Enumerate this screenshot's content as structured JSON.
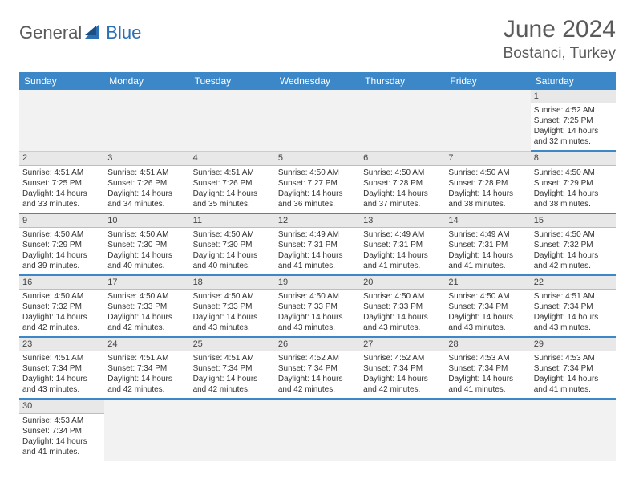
{
  "logo": {
    "general": "General",
    "blue": "Blue"
  },
  "title": "June 2024",
  "location": "Bostanci, Turkey",
  "colors": {
    "header_bg": "#3b87c8",
    "header_fg": "#ffffff",
    "accent": "#2b6fb5",
    "text": "#333333",
    "muted": "#5a5a5a",
    "cell_num_bg": "#e8e8e8",
    "blank_bg": "#f2f2f2"
  },
  "day_names": [
    "Sunday",
    "Monday",
    "Tuesday",
    "Wednesday",
    "Thursday",
    "Friday",
    "Saturday"
  ],
  "cells": [
    {
      "blank": true
    },
    {
      "blank": true
    },
    {
      "blank": true
    },
    {
      "blank": true
    },
    {
      "blank": true
    },
    {
      "blank": true
    },
    {
      "date": "1",
      "sunrise": "Sunrise: 4:52 AM",
      "sunset": "Sunset: 7:25 PM",
      "daylight1": "Daylight: 14 hours",
      "daylight2": "and 32 minutes."
    },
    {
      "date": "2",
      "sunrise": "Sunrise: 4:51 AM",
      "sunset": "Sunset: 7:25 PM",
      "daylight1": "Daylight: 14 hours",
      "daylight2": "and 33 minutes."
    },
    {
      "date": "3",
      "sunrise": "Sunrise: 4:51 AM",
      "sunset": "Sunset: 7:26 PM",
      "daylight1": "Daylight: 14 hours",
      "daylight2": "and 34 minutes."
    },
    {
      "date": "4",
      "sunrise": "Sunrise: 4:51 AM",
      "sunset": "Sunset: 7:26 PM",
      "daylight1": "Daylight: 14 hours",
      "daylight2": "and 35 minutes."
    },
    {
      "date": "5",
      "sunrise": "Sunrise: 4:50 AM",
      "sunset": "Sunset: 7:27 PM",
      "daylight1": "Daylight: 14 hours",
      "daylight2": "and 36 minutes."
    },
    {
      "date": "6",
      "sunrise": "Sunrise: 4:50 AM",
      "sunset": "Sunset: 7:28 PM",
      "daylight1": "Daylight: 14 hours",
      "daylight2": "and 37 minutes."
    },
    {
      "date": "7",
      "sunrise": "Sunrise: 4:50 AM",
      "sunset": "Sunset: 7:28 PM",
      "daylight1": "Daylight: 14 hours",
      "daylight2": "and 38 minutes."
    },
    {
      "date": "8",
      "sunrise": "Sunrise: 4:50 AM",
      "sunset": "Sunset: 7:29 PM",
      "daylight1": "Daylight: 14 hours",
      "daylight2": "and 38 minutes."
    },
    {
      "date": "9",
      "sunrise": "Sunrise: 4:50 AM",
      "sunset": "Sunset: 7:29 PM",
      "daylight1": "Daylight: 14 hours",
      "daylight2": "and 39 minutes."
    },
    {
      "date": "10",
      "sunrise": "Sunrise: 4:50 AM",
      "sunset": "Sunset: 7:30 PM",
      "daylight1": "Daylight: 14 hours",
      "daylight2": "and 40 minutes."
    },
    {
      "date": "11",
      "sunrise": "Sunrise: 4:50 AM",
      "sunset": "Sunset: 7:30 PM",
      "daylight1": "Daylight: 14 hours",
      "daylight2": "and 40 minutes."
    },
    {
      "date": "12",
      "sunrise": "Sunrise: 4:49 AM",
      "sunset": "Sunset: 7:31 PM",
      "daylight1": "Daylight: 14 hours",
      "daylight2": "and 41 minutes."
    },
    {
      "date": "13",
      "sunrise": "Sunrise: 4:49 AM",
      "sunset": "Sunset: 7:31 PM",
      "daylight1": "Daylight: 14 hours",
      "daylight2": "and 41 minutes."
    },
    {
      "date": "14",
      "sunrise": "Sunrise: 4:49 AM",
      "sunset": "Sunset: 7:31 PM",
      "daylight1": "Daylight: 14 hours",
      "daylight2": "and 41 minutes."
    },
    {
      "date": "15",
      "sunrise": "Sunrise: 4:50 AM",
      "sunset": "Sunset: 7:32 PM",
      "daylight1": "Daylight: 14 hours",
      "daylight2": "and 42 minutes."
    },
    {
      "date": "16",
      "sunrise": "Sunrise: 4:50 AM",
      "sunset": "Sunset: 7:32 PM",
      "daylight1": "Daylight: 14 hours",
      "daylight2": "and 42 minutes."
    },
    {
      "date": "17",
      "sunrise": "Sunrise: 4:50 AM",
      "sunset": "Sunset: 7:33 PM",
      "daylight1": "Daylight: 14 hours",
      "daylight2": "and 42 minutes."
    },
    {
      "date": "18",
      "sunrise": "Sunrise: 4:50 AM",
      "sunset": "Sunset: 7:33 PM",
      "daylight1": "Daylight: 14 hours",
      "daylight2": "and 43 minutes."
    },
    {
      "date": "19",
      "sunrise": "Sunrise: 4:50 AM",
      "sunset": "Sunset: 7:33 PM",
      "daylight1": "Daylight: 14 hours",
      "daylight2": "and 43 minutes."
    },
    {
      "date": "20",
      "sunrise": "Sunrise: 4:50 AM",
      "sunset": "Sunset: 7:33 PM",
      "daylight1": "Daylight: 14 hours",
      "daylight2": "and 43 minutes."
    },
    {
      "date": "21",
      "sunrise": "Sunrise: 4:50 AM",
      "sunset": "Sunset: 7:34 PM",
      "daylight1": "Daylight: 14 hours",
      "daylight2": "and 43 minutes."
    },
    {
      "date": "22",
      "sunrise": "Sunrise: 4:51 AM",
      "sunset": "Sunset: 7:34 PM",
      "daylight1": "Daylight: 14 hours",
      "daylight2": "and 43 minutes."
    },
    {
      "date": "23",
      "sunrise": "Sunrise: 4:51 AM",
      "sunset": "Sunset: 7:34 PM",
      "daylight1": "Daylight: 14 hours",
      "daylight2": "and 43 minutes."
    },
    {
      "date": "24",
      "sunrise": "Sunrise: 4:51 AM",
      "sunset": "Sunset: 7:34 PM",
      "daylight1": "Daylight: 14 hours",
      "daylight2": "and 42 minutes."
    },
    {
      "date": "25",
      "sunrise": "Sunrise: 4:51 AM",
      "sunset": "Sunset: 7:34 PM",
      "daylight1": "Daylight: 14 hours",
      "daylight2": "and 42 minutes."
    },
    {
      "date": "26",
      "sunrise": "Sunrise: 4:52 AM",
      "sunset": "Sunset: 7:34 PM",
      "daylight1": "Daylight: 14 hours",
      "daylight2": "and 42 minutes."
    },
    {
      "date": "27",
      "sunrise": "Sunrise: 4:52 AM",
      "sunset": "Sunset: 7:34 PM",
      "daylight1": "Daylight: 14 hours",
      "daylight2": "and 42 minutes."
    },
    {
      "date": "28",
      "sunrise": "Sunrise: 4:53 AM",
      "sunset": "Sunset: 7:34 PM",
      "daylight1": "Daylight: 14 hours",
      "daylight2": "and 41 minutes."
    },
    {
      "date": "29",
      "sunrise": "Sunrise: 4:53 AM",
      "sunset": "Sunset: 7:34 PM",
      "daylight1": "Daylight: 14 hours",
      "daylight2": "and 41 minutes."
    },
    {
      "date": "30",
      "sunrise": "Sunrise: 4:53 AM",
      "sunset": "Sunset: 7:34 PM",
      "daylight1": "Daylight: 14 hours",
      "daylight2": "and 41 minutes.",
      "last_row": true
    },
    {
      "blank": true,
      "last_row": true
    },
    {
      "blank": true,
      "last_row": true
    },
    {
      "blank": true,
      "last_row": true
    },
    {
      "blank": true,
      "last_row": true
    },
    {
      "blank": true,
      "last_row": true
    },
    {
      "blank": true,
      "last_row": true
    }
  ]
}
